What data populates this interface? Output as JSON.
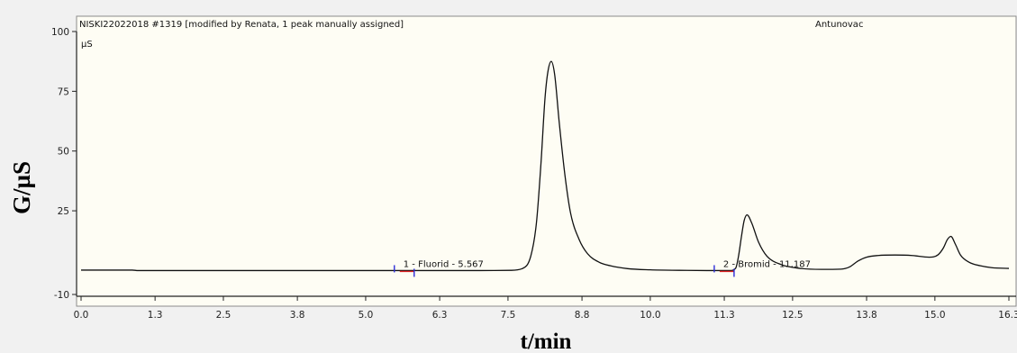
{
  "header": {
    "sample": "NISKI22022018 #1319 [modified by Renata, 1 peak manually assigned]",
    "channel": "Antunovac"
  },
  "unit_label": "µS",
  "chart_data": {
    "type": "line",
    "title": "",
    "xlabel": "t/min",
    "ylabel": "G/µS",
    "xlim": [
      0.0,
      16.3
    ],
    "ylim": [
      -10,
      100
    ],
    "x_tick_labels": [
      "0.0",
      "1.3",
      "2.5",
      "3.8",
      "5.0",
      "6.3",
      "7.5",
      "8.8",
      "10.0",
      "11.3",
      "12.5",
      "13.8",
      "15.0",
      "16.3"
    ],
    "y_tick_labels": [
      "100",
      "75",
      "50",
      "25",
      "-10"
    ],
    "y_tick_values": [
      100,
      75,
      50,
      25,
      -10
    ],
    "grid": false,
    "series": [
      {
        "x": [
          0.0,
          0.9,
          1.0,
          3.0,
          5.0,
          7.0,
          7.55,
          7.75,
          7.9,
          8.0,
          8.08,
          8.15,
          8.2,
          8.26,
          8.32,
          8.4,
          8.5,
          8.6,
          8.75,
          8.9,
          9.1,
          9.3,
          9.6,
          10.0,
          10.5,
          11.0,
          11.4,
          11.5,
          11.55,
          11.6,
          11.65,
          11.7,
          11.78,
          11.9,
          12.05,
          12.3,
          12.6,
          13.0,
          13.35,
          13.5,
          13.65,
          13.8,
          14.0,
          14.3,
          14.6,
          14.9,
          15.05,
          15.15,
          15.22,
          15.28,
          15.36,
          15.45,
          15.6,
          15.8,
          16.0,
          16.3
        ],
        "y": [
          0.2,
          0.2,
          0.0,
          0.0,
          0.0,
          0.0,
          0.1,
          0.8,
          6.0,
          20.0,
          45.0,
          72.0,
          83.0,
          87.5,
          82.0,
          62.0,
          40.0,
          24.0,
          13.0,
          7.0,
          3.5,
          2.0,
          0.8,
          0.3,
          0.1,
          0.0,
          0.0,
          1.0,
          6.0,
          14.0,
          21.0,
          23.3,
          20.0,
          12.0,
          6.0,
          2.5,
          1.0,
          0.5,
          0.6,
          1.5,
          4.0,
          5.6,
          6.3,
          6.5,
          6.3,
          5.6,
          6.5,
          9.5,
          13.0,
          14.3,
          11.0,
          6.5,
          3.5,
          2.0,
          1.2,
          0.9
        ]
      }
    ],
    "annotations": [
      {
        "text": "1 - Fluorid - 5.567",
        "x": 5.567,
        "y": 0
      },
      {
        "text": "2 - Bromid - 11.187",
        "x": 11.187,
        "y": 0
      }
    ]
  }
}
